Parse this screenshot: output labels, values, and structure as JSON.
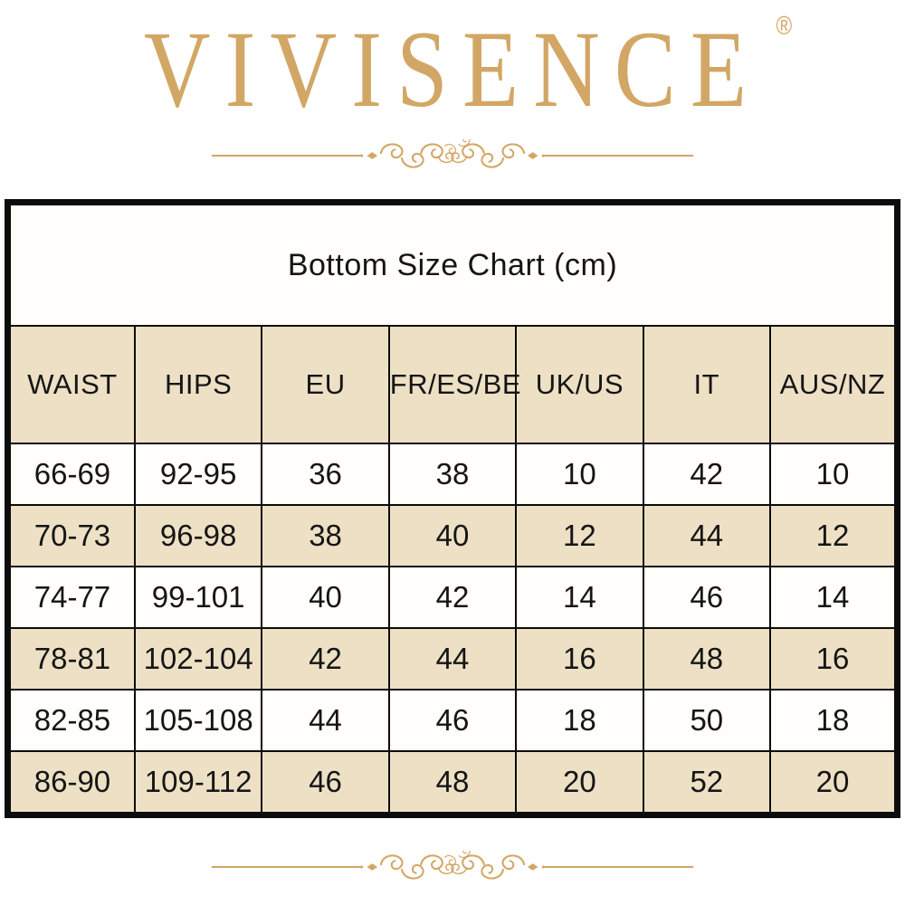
{
  "brand": {
    "name": "VIVISENCE",
    "registered_mark": "®"
  },
  "table": {
    "title": "Bottom Size Chart (cm)",
    "columns": [
      "WAIST",
      "HIPS",
      "EU",
      "FR/ES/BE",
      "UK/US",
      "IT",
      "AUS/NZ"
    ],
    "rows": [
      [
        "66-69",
        "92-95",
        "36",
        "38",
        "10",
        "42",
        "10"
      ],
      [
        "70-73",
        "96-98",
        "38",
        "40",
        "12",
        "44",
        "12"
      ],
      [
        "74-77",
        "99-101",
        "40",
        "42",
        "14",
        "46",
        "14"
      ],
      [
        "78-81",
        "102-104",
        "42",
        "44",
        "16",
        "48",
        "16"
      ],
      [
        "82-85",
        "105-108",
        "44",
        "46",
        "18",
        "50",
        "18"
      ],
      [
        "86-90",
        "109-112",
        "46",
        "48",
        "20",
        "52",
        "20"
      ]
    ]
  },
  "chart_data": {
    "type": "table",
    "title": "Bottom Size Chart (cm)",
    "columns": [
      "WAIST",
      "HIPS",
      "EU",
      "FR/ES/BE",
      "UK/US",
      "IT",
      "AUS/NZ"
    ],
    "rows": [
      [
        "66-69",
        "92-95",
        "36",
        "38",
        "10",
        "42",
        "10"
      ],
      [
        "70-73",
        "96-98",
        "38",
        "40",
        "12",
        "44",
        "12"
      ],
      [
        "74-77",
        "99-101",
        "40",
        "42",
        "14",
        "46",
        "14"
      ],
      [
        "78-81",
        "102-104",
        "42",
        "44",
        "16",
        "48",
        "16"
      ],
      [
        "82-85",
        "105-108",
        "44",
        "46",
        "18",
        "50",
        "18"
      ],
      [
        "86-90",
        "109-112",
        "46",
        "48",
        "20",
        "52",
        "20"
      ]
    ]
  },
  "colors": {
    "brand_gold": "#D2A765",
    "row_beige": "#EDE0C5",
    "border_black": "#0c0c0c",
    "text": "#151515"
  }
}
